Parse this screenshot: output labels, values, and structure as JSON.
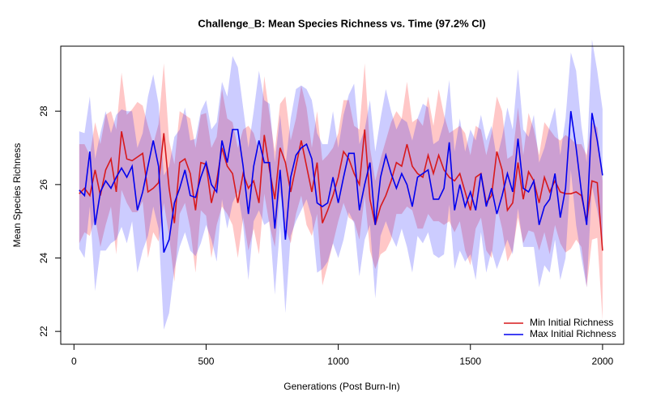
{
  "chart_data": {
    "type": "line",
    "title": "Challenge_B: Mean Species Richness vs. Time (97.2% CI)",
    "x_label": "Generations (Post Burn-In)",
    "y_label": "Mean Species Richness",
    "x": [
      20,
      40,
      60,
      80,
      100,
      120,
      140,
      160,
      180,
      200,
      220,
      240,
      260,
      280,
      300,
      320,
      340,
      360,
      380,
      400,
      420,
      440,
      460,
      480,
      500,
      520,
      540,
      560,
      580,
      600,
      620,
      640,
      660,
      680,
      700,
      720,
      740,
      760,
      780,
      800,
      820,
      840,
      860,
      880,
      900,
      920,
      940,
      960,
      980,
      1000,
      1020,
      1040,
      1060,
      1080,
      1100,
      1120,
      1140,
      1160,
      1180,
      1200,
      1220,
      1240,
      1260,
      1280,
      1300,
      1320,
      1340,
      1360,
      1380,
      1400,
      1420,
      1440,
      1460,
      1480,
      1500,
      1520,
      1540,
      1560,
      1580,
      1600,
      1620,
      1640,
      1660,
      1680,
      1700,
      1720,
      1740,
      1760,
      1780,
      1800,
      1820,
      1840,
      1860,
      1880,
      1900,
      1920,
      1940,
      1960,
      1980,
      2000
    ],
    "xlim": [
      -50,
      2080
    ],
    "xticks": [
      0,
      500,
      1000,
      1500,
      2000
    ],
    "ylim": [
      21.65,
      29.77
    ],
    "yticks": [
      22,
      24,
      26,
      28
    ],
    "legend": "bottomright",
    "series": [
      {
        "name": "Min Initial Richness",
        "color": "#d7191c",
        "band_color": "rgba(255,0,0,0.22)",
        "values": [
          25.75,
          25.9,
          25.7,
          26.4,
          25.7,
          26.4,
          26.7,
          25.8,
          27.45,
          26.7,
          26.65,
          26.75,
          26.85,
          25.8,
          25.9,
          26.05,
          27.4,
          25.9,
          24.95,
          26.6,
          26.7,
          26.3,
          25.3,
          26.6,
          26.55,
          25.5,
          26.1,
          27.0,
          26.5,
          26.3,
          25.5,
          26.3,
          25.9,
          26.1,
          25.5,
          27.35,
          26.4,
          25.6,
          27.0,
          26.6,
          25.8,
          26.5,
          27.2,
          26.5,
          25.8,
          26.6,
          24.95,
          25.3,
          25.7,
          26.2,
          26.9,
          26.7,
          26.3,
          26.0,
          27.5,
          25.6,
          24.9,
          25.4,
          25.7,
          26.1,
          26.6,
          26.5,
          27.1,
          26.5,
          26.3,
          26.2,
          26.8,
          26.3,
          26.8,
          26.4,
          26.2,
          26.1,
          26.3,
          25.8,
          25.3,
          26.2,
          26.3,
          25.5,
          25.7,
          26.9,
          26.4,
          25.3,
          25.5,
          26.6,
          25.6,
          26.35,
          26.1,
          25.5,
          26.2,
          25.8,
          26.1,
          25.8,
          25.75,
          25.75,
          25.8,
          25.7,
          25.0,
          26.1,
          26.05,
          24.2
        ],
        "errors": [
          1.35,
          1.2,
          1.1,
          1.3,
          1.4,
          1.5,
          1.3,
          1.7,
          1.6,
          1.2,
          1.4,
          1.5,
          1.3,
          1.8,
          1.2,
          1.6,
          1.9,
          1.3,
          1.6,
          1.4,
          1.2,
          1.5,
          1.7,
          1.3,
          1.4,
          1.5,
          1.2,
          1.6,
          1.3,
          1.4,
          1.5,
          1.2,
          1.7,
          1.3,
          1.4,
          1.6,
          1.5,
          1.3,
          1.2,
          1.8,
          1.4,
          1.3,
          1.5,
          1.6,
          1.2,
          1.4,
          1.7,
          1.5,
          1.3,
          1.2,
          1.4,
          1.6,
          1.3,
          1.5,
          1.8,
          1.4,
          1.2,
          1.3,
          1.5,
          1.6,
          1.4,
          1.3,
          1.7,
          1.2,
          1.5,
          1.4,
          1.6,
          1.3,
          1.8,
          1.5,
          1.2,
          1.4,
          1.3,
          1.6,
          1.5,
          1.4,
          1.2,
          1.3,
          1.7,
          1.5,
          1.6,
          1.4,
          1.3,
          1.5,
          1.2,
          1.6,
          1.4,
          1.3,
          1.5,
          1.7,
          1.2,
          1.4,
          1.6,
          1.5,
          1.3,
          1.4,
          1.8,
          1.6,
          1.5,
          1.9
        ]
      },
      {
        "name": "Max Initial Richness",
        "color": "#0000ee",
        "band_color": "rgba(0,0,255,0.2)",
        "values": [
          25.85,
          25.7,
          26.9,
          24.9,
          25.8,
          26.1,
          25.9,
          26.2,
          26.45,
          26.2,
          26.5,
          25.3,
          25.8,
          26.5,
          27.2,
          26.5,
          24.15,
          24.5,
          25.5,
          25.9,
          26.4,
          25.7,
          25.65,
          26.2,
          26.6,
          26.0,
          25.8,
          27.2,
          26.6,
          27.5,
          27.5,
          26.5,
          25.2,
          26.5,
          27.2,
          26.6,
          26.6,
          24.8,
          26.4,
          24.5,
          26.2,
          26.8,
          27.0,
          27.1,
          26.7,
          25.5,
          25.4,
          25.5,
          26.2,
          25.5,
          26.2,
          26.85,
          26.85,
          25.3,
          26.0,
          26.6,
          24.9,
          26.2,
          26.8,
          26.3,
          25.9,
          26.3,
          26.0,
          25.4,
          26.2,
          26.3,
          26.4,
          25.6,
          25.6,
          25.9,
          27.15,
          25.3,
          26.0,
          25.4,
          25.8,
          25.3,
          26.3,
          25.4,
          25.9,
          25.2,
          25.7,
          26.3,
          25.8,
          27.25,
          25.9,
          25.8,
          26.1,
          24.9,
          25.4,
          25.6,
          26.3,
          25.1,
          25.9,
          28.0,
          27.0,
          25.8,
          24.9,
          27.95,
          27.2,
          26.25
        ],
        "errors": [
          1.6,
          1.7,
          1.5,
          1.8,
          1.6,
          1.9,
          1.5,
          1.7,
          1.6,
          1.8,
          1.5,
          1.7,
          1.6,
          1.9,
          1.8,
          1.7,
          2.1,
          2.0,
          1.8,
          1.6,
          1.7,
          1.5,
          1.6,
          1.8,
          1.7,
          1.5,
          1.9,
          1.6,
          1.8,
          2.0,
          1.7,
          1.6,
          1.8,
          1.5,
          1.9,
          1.7,
          1.6,
          1.8,
          1.5,
          2.0,
          1.6,
          1.8,
          1.7,
          1.5,
          1.6,
          1.9,
          1.7,
          1.6,
          1.8,
          1.5,
          1.7,
          1.6,
          1.9,
          1.8,
          1.5,
          1.7,
          2.0,
          1.6,
          1.8,
          1.7,
          1.6,
          1.5,
          1.7,
          1.8,
          1.6,
          1.9,
          1.7,
          1.5,
          1.6,
          1.8,
          1.7,
          1.6,
          1.8,
          1.5,
          1.7,
          1.9,
          1.6,
          1.8,
          1.7,
          1.5,
          1.6,
          1.8,
          1.7,
          1.9,
          1.6,
          1.5,
          1.8,
          1.7,
          1.6,
          2.0,
          1.8,
          1.7,
          1.9,
          1.6,
          2.1,
          1.8,
          1.7,
          2.0,
          1.9,
          1.8
        ]
      }
    ]
  }
}
